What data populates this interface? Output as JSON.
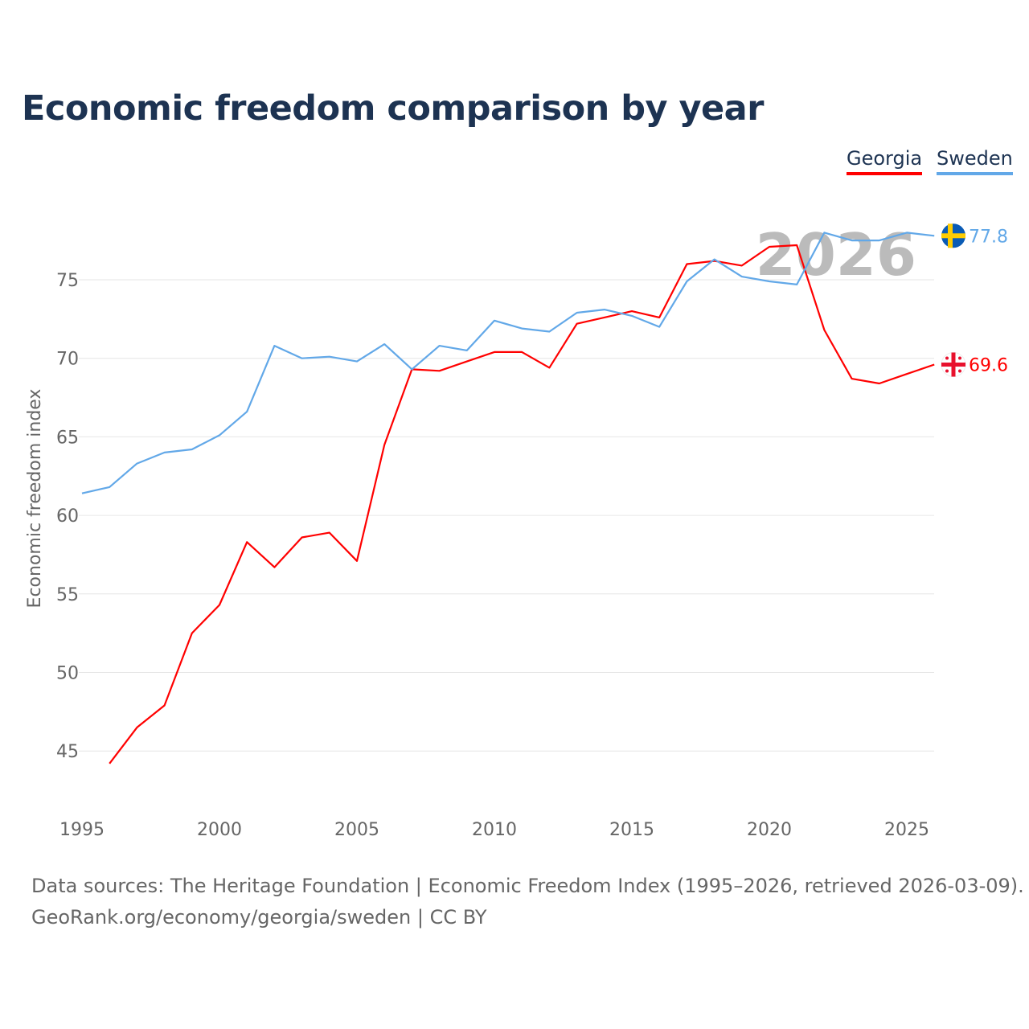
{
  "title": "Economic freedom comparison by year",
  "legend": [
    "Georgia",
    "Sweden"
  ],
  "footer": {
    "line1": "Data sources: The Heritage Foundation | Economic Freedom Index (1995–2026, retrieved 2026-03-09).",
    "line2": "GeoRank.org/economy/georgia/sweden | CC BY"
  },
  "chart_data": {
    "type": "line",
    "title": "Economic freedom comparison by year",
    "ylabel": "Economic freedom index",
    "xlabel": "",
    "xlim": [
      1995,
      2026
    ],
    "ylim": [
      41,
      80
    ],
    "xticks": [
      1995,
      2000,
      2005,
      2010,
      2015,
      2020,
      2025
    ],
    "yticks": [
      45,
      50,
      55,
      60,
      65,
      70,
      75
    ],
    "grid": true,
    "watermark_year": "2026",
    "legend_position": "top-right",
    "series": [
      {
        "name": "Georgia",
        "color": "#ff0000",
        "end_label": "69.6",
        "x": [
          1996,
          1997,
          1998,
          1999,
          2000,
          2001,
          2002,
          2003,
          2004,
          2005,
          2006,
          2007,
          2008,
          2009,
          2010,
          2011,
          2012,
          2013,
          2014,
          2015,
          2016,
          2017,
          2018,
          2019,
          2020,
          2021,
          2022,
          2023,
          2024,
          2025,
          2026
        ],
        "values": [
          44.2,
          46.5,
          47.9,
          52.5,
          54.3,
          58.3,
          56.7,
          58.6,
          58.9,
          57.1,
          64.5,
          69.3,
          69.2,
          69.8,
          70.4,
          70.4,
          69.4,
          72.2,
          72.6,
          73.0,
          72.6,
          76.0,
          76.2,
          75.9,
          77.1,
          77.2,
          71.8,
          68.7,
          68.4,
          69.0,
          69.6
        ]
      },
      {
        "name": "Sweden",
        "color": "#62a8e8",
        "end_label": "77.8",
        "x": [
          1995,
          1996,
          1997,
          1998,
          1999,
          2000,
          2001,
          2002,
          2003,
          2004,
          2005,
          2006,
          2007,
          2008,
          2009,
          2010,
          2011,
          2012,
          2013,
          2014,
          2015,
          2016,
          2017,
          2018,
          2019,
          2020,
          2021,
          2022,
          2023,
          2024,
          2025,
          2026
        ],
        "values": [
          61.4,
          61.8,
          63.3,
          64.0,
          64.2,
          65.1,
          66.6,
          70.8,
          70.0,
          70.1,
          69.8,
          70.9,
          69.3,
          70.8,
          70.5,
          72.4,
          71.9,
          71.7,
          72.9,
          73.1,
          72.7,
          72.0,
          74.9,
          76.3,
          75.2,
          74.9,
          74.7,
          78.0,
          77.5,
          77.5,
          78.0,
          77.8
        ]
      }
    ]
  }
}
